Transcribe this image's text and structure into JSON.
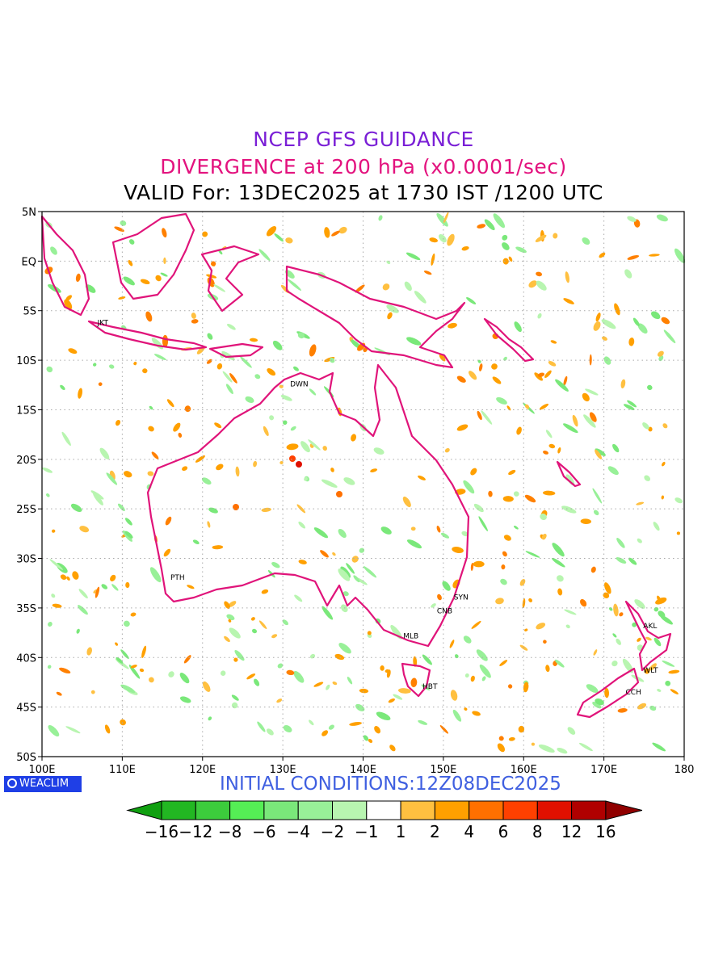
{
  "titles": {
    "line1": "NCEP GFS GUIDANCE",
    "line2": "DIVERGENCE at 200 hPa (x0.0001/sec)",
    "line3": "VALID For: 13DEC2025 at 1730 IST /1200 UTC"
  },
  "initial_conditions": "INITIAL CONDITIONS:12Z08DEC2025",
  "logo_text": "WEACLIM",
  "colors": {
    "title1": "#7a1fd6",
    "title2": "#e3127e",
    "init": "#3f5fe0",
    "coast": "#e0147a",
    "logo_bg": "#1f3fe6"
  },
  "map": {
    "lon_range": [
      100,
      180
    ],
    "lat_range": [
      -50,
      5
    ],
    "lon_labels": [
      "100E",
      "110E",
      "120E",
      "130E",
      "140E",
      "150E",
      "160E",
      "170E",
      "180"
    ],
    "lat_labels": [
      "5N",
      "EQ",
      "5S",
      "10S",
      "15S",
      "20S",
      "25S",
      "30S",
      "35S",
      "40S",
      "45S",
      "50S"
    ],
    "cities": [
      {
        "name": "JKT",
        "lon": 106.8,
        "lat": -6.2
      },
      {
        "name": "DWN",
        "lon": 130.8,
        "lat": -12.4
      },
      {
        "name": "PTH",
        "lon": 115.9,
        "lat": -31.9
      },
      {
        "name": "SYN",
        "lon": 151.2,
        "lat": -33.9
      },
      {
        "name": "CNB",
        "lon": 149.1,
        "lat": -35.3
      },
      {
        "name": "MLB",
        "lon": 144.9,
        "lat": -37.8
      },
      {
        "name": "HBT",
        "lon": 147.3,
        "lat": -42.9
      },
      {
        "name": "AKL",
        "lon": 174.8,
        "lat": -36.8
      },
      {
        "name": "WLT",
        "lon": 174.8,
        "lat": -41.3
      },
      {
        "name": "CCH",
        "lon": 172.6,
        "lat": -43.5
      }
    ]
  },
  "legend": {
    "labels": [
      "−16",
      "−12",
      "−8",
      "−6",
      "−4",
      "−2",
      "−1",
      "1",
      "2",
      "4",
      "6",
      "8",
      "12",
      "16"
    ],
    "colors": [
      "#10a010",
      "#22b722",
      "#3ccc3c",
      "#55ee55",
      "#7ae87a",
      "#98f098",
      "#b8f5b0",
      "#ffffff",
      "#ffc040",
      "#ffa000",
      "#ff7000",
      "#ff4000",
      "#e01000",
      "#b00000",
      "#900000"
    ]
  }
}
